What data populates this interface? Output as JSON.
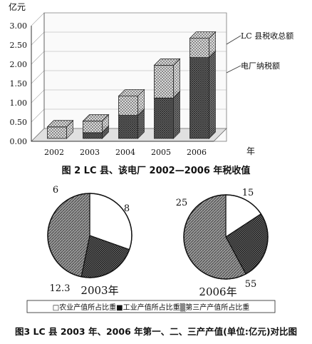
{
  "figure2": {
    "caption": "图 2   LC 县、该电厂 2002—2006 年税收值",
    "y_unit": "亿元",
    "x_unit": "年",
    "y_ticks": [
      "3.00",
      "2.50",
      "2.00",
      "1.50",
      "1.00",
      "0.50",
      "0.00"
    ],
    "legend_labels": [
      "LC 县税收总额",
      "电厂纳税额"
    ]
  },
  "figure3": {
    "caption": "图3  LC 县 2003 年、2006 年第一、二、三产产值(单位:亿元)对比图",
    "legend_text": "□农业产值所占比重■工业产值所占比重▒第三产产值所占比重"
  },
  "chart_data": [
    {
      "type": "bar",
      "categories": [
        "2002",
        "2003",
        "2004",
        "2005",
        "2006"
      ],
      "series": [
        {
          "name": "LC 县税收总额",
          "values": [
            0.3,
            0.45,
            1.1,
            1.9,
            2.6
          ]
        },
        {
          "name": "电厂纳税额",
          "values": [
            0.0,
            0.15,
            0.6,
            1.05,
            2.1
          ]
        }
      ],
      "title": "图 2   LC 县、该电厂 2002—2006 年税收值",
      "ylabel": "亿元",
      "xlabel": "年",
      "ylim": [
        0,
        3.0
      ],
      "grid": true
    },
    {
      "type": "pie",
      "title": "2003年",
      "labels": [
        "农业产值所占比重",
        "工业产值所占比重",
        "第三产产值所占比重"
      ],
      "values": [
        8,
        6,
        12.3
      ],
      "value_labels": [
        "8",
        "6",
        "12.3"
      ]
    },
    {
      "type": "pie",
      "title": "2006年",
      "labels": [
        "农业产值所占比重",
        "工业产值所占比重",
        "第三产产值所占比重"
      ],
      "values": [
        15,
        25,
        55
      ],
      "value_labels": [
        "15",
        "25",
        "55"
      ]
    }
  ]
}
